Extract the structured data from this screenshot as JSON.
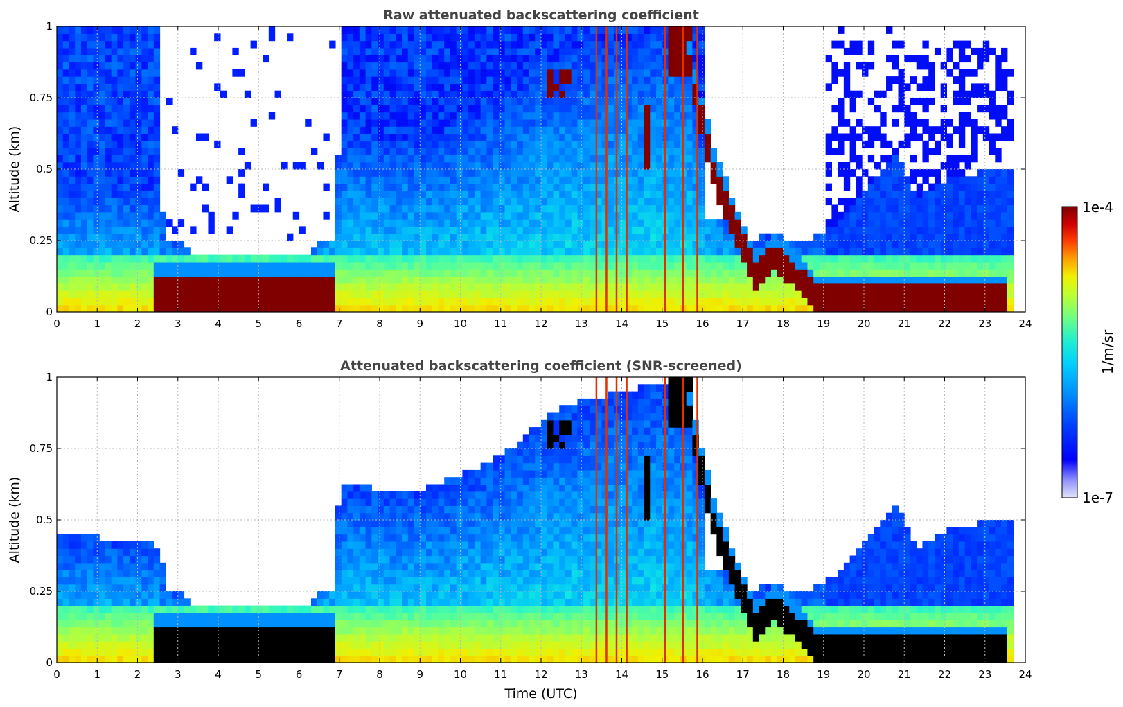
{
  "colors": {
    "jet": [
      "#000080",
      "#0000d0",
      "#0010ff",
      "#0060ff",
      "#00b0ff",
      "#10f0e0",
      "#60ff90",
      "#b0ff40",
      "#f0f000",
      "#ffa000",
      "#ff5000",
      "#e00000",
      "#800000"
    ],
    "lowest": "#e4e4f8",
    "saturated_raw": "#800000",
    "saturated_screened": "#000000"
  },
  "chart_data": [
    {
      "type": "heatmap",
      "title": "Raw attenuated backscattering coefficient",
      "xlabel": "",
      "ylabel": "Altitude (km)",
      "xlim": [
        0,
        24
      ],
      "ylim": [
        0,
        1
      ],
      "x_ticks": [
        "0",
        "1",
        "2",
        "3",
        "4",
        "5",
        "6",
        "7",
        "8",
        "9",
        "10",
        "11",
        "12",
        "13",
        "14",
        "15",
        "16",
        "17",
        "18",
        "19",
        "20",
        "21",
        "22",
        "23",
        "24"
      ],
      "y_ticks": [
        "0",
        "0.25",
        "0.5",
        "0.75",
        "1"
      ],
      "y_tick_values": [
        0,
        0.25,
        0.5,
        0.75,
        1
      ],
      "grid": true,
      "data_extent_x": [
        0,
        23.55
      ]
    },
    {
      "type": "heatmap",
      "title": "Attenuated backscattering coefficient (SNR-screened)",
      "xlabel": "Time (UTC)",
      "ylabel": "Altitude (km)",
      "xlim": [
        0,
        24
      ],
      "ylim": [
        0,
        1
      ],
      "x_ticks": [
        "0",
        "1",
        "2",
        "3",
        "4",
        "5",
        "6",
        "7",
        "8",
        "9",
        "10",
        "11",
        "12",
        "13",
        "14",
        "15",
        "16",
        "17",
        "18",
        "19",
        "20",
        "21",
        "22",
        "23",
        "24"
      ],
      "y_ticks": [
        "0",
        "0.25",
        "0.5",
        "0.75",
        "1"
      ],
      "y_tick_values": [
        0,
        0.25,
        0.5,
        0.75,
        1
      ],
      "grid": true,
      "data_extent_x": [
        0,
        23.55
      ]
    }
  ],
  "colorbar": {
    "max_label": "1e-4",
    "min_label": "1e-7",
    "label": "1/m/sr",
    "scale": "log",
    "range": [
      1e-07,
      0.0001
    ]
  }
}
